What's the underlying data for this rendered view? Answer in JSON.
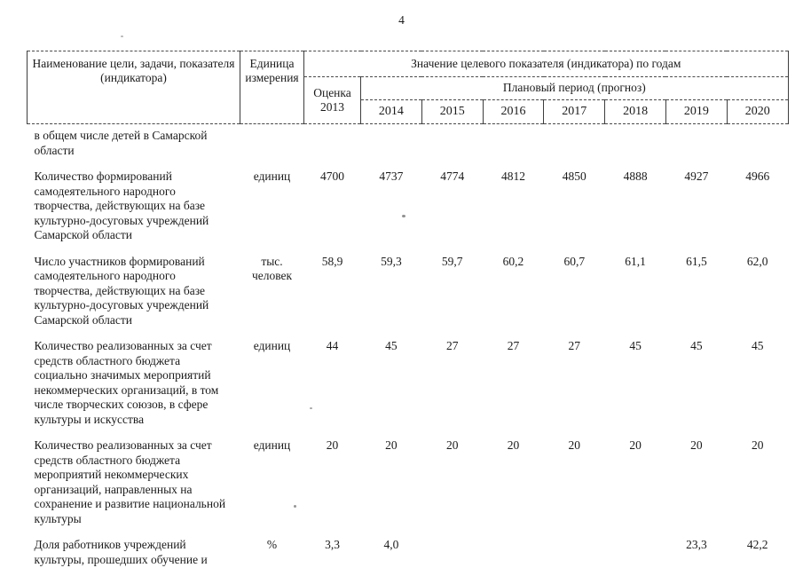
{
  "page": {
    "number": "4"
  },
  "table": {
    "header": {
      "col_name": "Наименование цели, задачи, показателя (индикатора)",
      "col_unit": "Единица измерения",
      "col_values": "Значение целевого показателя (индикатора) по годам",
      "col_estimate": "Оценка 2013",
      "col_plan": "Плановый период (прогноз)",
      "years": [
        "2014",
        "2015",
        "2016",
        "2017",
        "2018",
        "2019",
        "2020"
      ]
    },
    "rows": [
      {
        "name": "в общем числе детей в Самарской области",
        "unit": "",
        "values": [
          "",
          "",
          "",
          "",
          "",
          "",
          "",
          ""
        ]
      },
      {
        "name": "Количество формирований самодеятельного народного творчества, действующих на базе культурно-досуговых учреждений Самарской области",
        "unit": "единиц",
        "values": [
          "4700",
          "4737",
          "4774",
          "4812",
          "4850",
          "4888",
          "4927",
          "4966"
        ]
      },
      {
        "name": "Число участников формирований самодеятельного народного творчества, действующих на базе культурно-досуговых учреждений Самарской области",
        "unit": "тыс. человек",
        "values": [
          "58,9",
          "59,3",
          "59,7",
          "60,2",
          "60,7",
          "61,1",
          "61,5",
          "62,0"
        ]
      },
      {
        "name": "Количество реализованных за счет средств областного бюджета социально значимых мероприятий некоммерческих организаций, в том числе творческих союзов, в сфере культуры и искусства",
        "unit": "единиц",
        "values": [
          "44",
          "45",
          "27",
          "27",
          "27",
          "45",
          "45",
          "45"
        ]
      },
      {
        "name": "Количество реализованных за счет средств областного бюджета мероприятий некоммерческих организаций, направленных на сохранение и развитие национальной культуры",
        "unit": "единиц",
        "values": [
          "20",
          "20",
          "20",
          "20",
          "20",
          "20",
          "20",
          "20"
        ]
      },
      {
        "name": "Доля работников учреждений культуры, прошедших обучение и",
        "unit": "%",
        "values": [
          "3,3",
          "4,0",
          "",
          "",
          "",
          "",
          "23,3",
          "42,2"
        ]
      }
    ]
  }
}
